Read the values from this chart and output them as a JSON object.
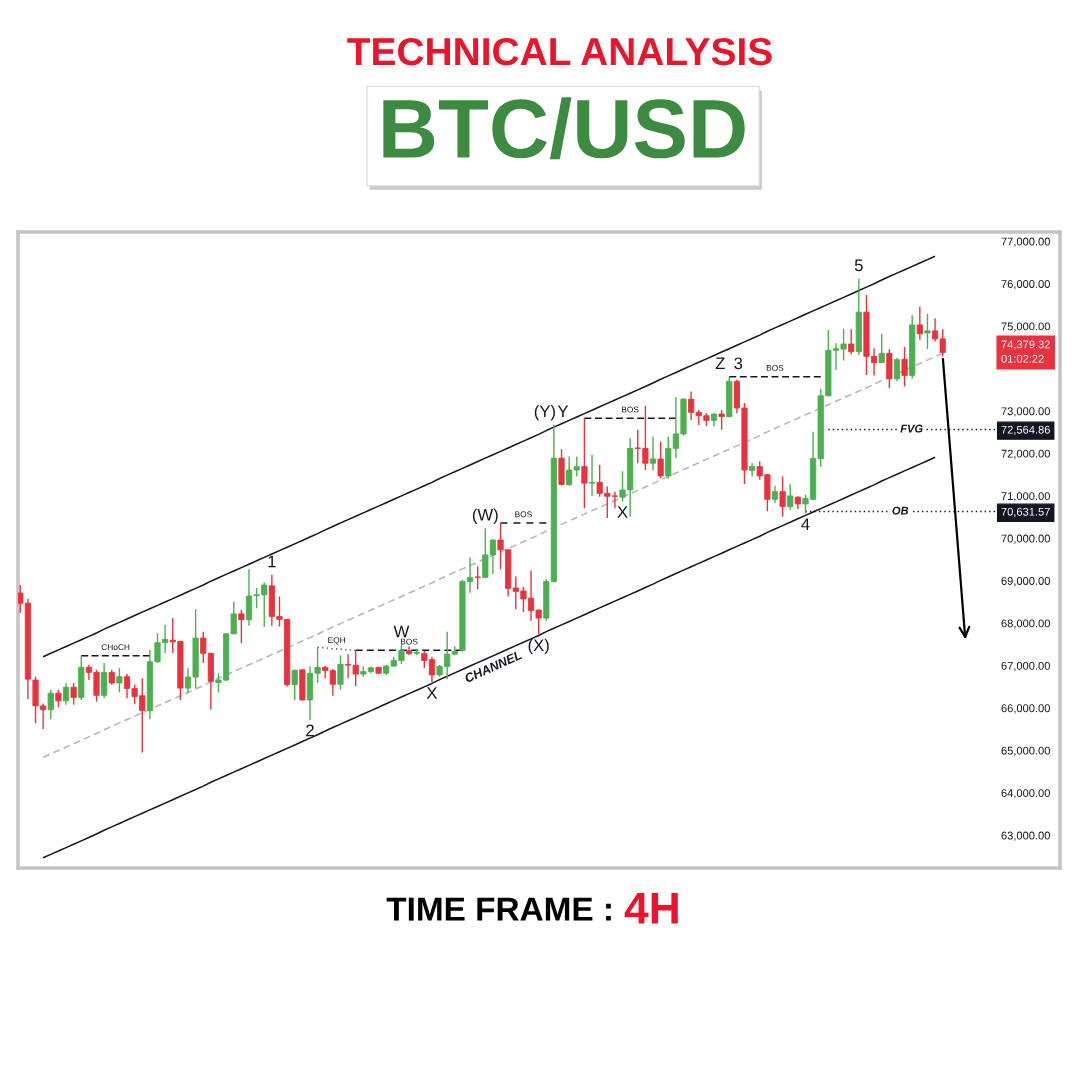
{
  "chart_data": {
    "type": "candlestick",
    "title": "TECHNICAL ANALYSIS",
    "subtitle": "BTC/USD",
    "categories": [
      null,
      null,
      null,
      null,
      null,
      null,
      null,
      null,
      null,
      null,
      null,
      null,
      null,
      null,
      null,
      null,
      null,
      null,
      null,
      null,
      null,
      null,
      null,
      null,
      null,
      null,
      null,
      null,
      null,
      null,
      null,
      null,
      null,
      null,
      null,
      null,
      null,
      null,
      null,
      null,
      null,
      null,
      null,
      null,
      null,
      null,
      null,
      null,
      null,
      null,
      null,
      null,
      null,
      null,
      null,
      null,
      null,
      null,
      null,
      null,
      null,
      null,
      null,
      null,
      null,
      null,
      null,
      null,
      null,
      null,
      null,
      null,
      null,
      null,
      null,
      null,
      null,
      null,
      null,
      null,
      null,
      null,
      null,
      null,
      null,
      null,
      null,
      null,
      null,
      null,
      null,
      null,
      null,
      null,
      null,
      null,
      null,
      null,
      null,
      null,
      null,
      null,
      null,
      null,
      null,
      null,
      null,
      null,
      null,
      null,
      null,
      null,
      null,
      null,
      null,
      null,
      null,
      null,
      null,
      null,
      null,
      null
    ],
    "ohlc": [
      [
        68710,
        68900,
        68240,
        68470
      ],
      [
        68470,
        68570,
        66210,
        66680
      ],
      [
        66660,
        66740,
        65640,
        66050
      ],
      [
        66050,
        66110,
        65500,
        65960
      ],
      [
        65960,
        66430,
        65740,
        66350
      ],
      [
        66350,
        66430,
        66020,
        66170
      ],
      [
        66170,
        66590,
        66080,
        66490
      ],
      [
        66490,
        66590,
        66080,
        66250
      ],
      [
        66250,
        67230,
        66190,
        66960
      ],
      [
        66960,
        67020,
        66660,
        66840
      ],
      [
        66840,
        66900,
        66150,
        66300
      ],
      [
        66300,
        67060,
        66230,
        66840
      ],
      [
        66840,
        66900,
        66550,
        66590
      ],
      [
        66590,
        66940,
        66370,
        66740
      ],
      [
        66740,
        66810,
        66230,
        66460
      ],
      [
        66460,
        66550,
        66090,
        66270
      ],
      [
        66290,
        66700,
        64950,
        65940
      ],
      [
        65940,
        67370,
        65740,
        67090
      ],
      [
        67090,
        67760,
        67070,
        67540
      ],
      [
        67540,
        67960,
        67290,
        67620
      ],
      [
        67600,
        68120,
        67290,
        67560
      ],
      [
        67570,
        67580,
        66190,
        66470
      ],
      [
        66470,
        66940,
        66350,
        66730
      ],
      [
        66730,
        68330,
        66470,
        67650
      ],
      [
        67650,
        67800,
        67060,
        67290
      ],
      [
        67290,
        67300,
        65960,
        66630
      ],
      [
        66600,
        66820,
        66370,
        66660
      ],
      [
        66660,
        67770,
        66640,
        67750
      ],
      [
        67750,
        68510,
        67740,
        68220
      ],
      [
        68220,
        68310,
        67530,
        68080
      ],
      [
        68080,
        69270,
        67940,
        68640
      ],
      [
        68650,
        68830,
        68350,
        68670
      ],
      [
        68670,
        68960,
        67910,
        68900
      ],
      [
        68880,
        69140,
        67940,
        68160
      ],
      [
        68160,
        68630,
        67920,
        68090
      ],
      [
        68090,
        68100,
        66510,
        66550
      ],
      [
        66550,
        66900,
        66190,
        66890
      ],
      [
        66900,
        66910,
        66180,
        66190
      ],
      [
        66190,
        66980,
        65720,
        66820
      ],
      [
        66820,
        67430,
        66590,
        66960
      ],
      [
        66960,
        66990,
        66700,
        66880
      ],
      [
        66880,
        66920,
        66290,
        66560
      ],
      [
        66560,
        67240,
        66430,
        67030
      ],
      [
        67030,
        67270,
        66700,
        67010
      ],
      [
        67010,
        67360,
        66520,
        66800
      ],
      [
        66800,
        66980,
        66740,
        66860
      ],
      [
        66860,
        66980,
        66820,
        66950
      ],
      [
        66960,
        66970,
        66810,
        66820
      ],
      [
        66820,
        67020,
        66780,
        66990
      ],
      [
        66990,
        67210,
        66980,
        67120
      ],
      [
        67120,
        67490,
        67040,
        67360
      ],
      [
        67350,
        67450,
        67250,
        67280
      ],
      [
        67290,
        67400,
        67250,
        67310
      ],
      [
        67280,
        67350,
        66940,
        67120
      ],
      [
        67140,
        67210,
        66600,
        66780
      ],
      [
        66780,
        67020,
        66740,
        66980
      ],
      [
        66980,
        67800,
        66680,
        67270
      ],
      [
        67270,
        67450,
        67250,
        67330
      ],
      [
        67360,
        69020,
        67330,
        68980
      ],
      [
        68980,
        69550,
        68720,
        69080
      ],
      [
        69090,
        69340,
        68800,
        69080
      ],
      [
        69080,
        70240,
        69060,
        69610
      ],
      [
        69610,
        69980,
        69160,
        69960
      ],
      [
        69960,
        70360,
        69270,
        69730
      ],
      [
        69730,
        69740,
        68630,
        68820
      ],
      [
        68830,
        69100,
        68330,
        68750
      ],
      [
        68760,
        68860,
        68260,
        68570
      ],
      [
        68590,
        69240,
        68060,
        68300
      ],
      [
        68310,
        68320,
        67730,
        68120
      ],
      [
        68120,
        69040,
        68060,
        68980
      ],
      [
        68980,
        72680,
        68960,
        71890
      ],
      [
        71890,
        72100,
        71250,
        71270
      ],
      [
        71260,
        71930,
        71250,
        71610
      ],
      [
        71610,
        71930,
        71460,
        71690
      ],
      [
        71690,
        72830,
        70710,
        71300
      ],
      [
        71300,
        71970,
        71000,
        71320
      ],
      [
        71320,
        71730,
        70980,
        71060
      ],
      [
        71060,
        71220,
        70480,
        70990
      ],
      [
        71000,
        71100,
        70710,
        70990
      ],
      [
        70970,
        71580,
        70870,
        71140
      ],
      [
        71140,
        72360,
        70510,
        72120
      ],
      [
        72130,
        72560,
        71770,
        72120
      ],
      [
        72120,
        73120,
        71610,
        71770
      ],
      [
        71770,
        72400,
        71600,
        71870
      ],
      [
        71870,
        72280,
        71420,
        71470
      ],
      [
        71470,
        72400,
        71410,
        72120
      ],
      [
        72120,
        73330,
        71890,
        72460
      ],
      [
        72460,
        73300,
        72420,
        73280
      ],
      [
        73280,
        73460,
        72790,
        72970
      ],
      [
        72970,
        73030,
        72670,
        72890
      ],
      [
        72890,
        72950,
        72650,
        72780
      ],
      [
        72780,
        72950,
        72640,
        72930
      ],
      [
        72930,
        73030,
        72560,
        72870
      ],
      [
        72870,
        73810,
        72850,
        73700
      ],
      [
        73700,
        73740,
        72950,
        73070
      ],
      [
        73070,
        73190,
        71280,
        71610
      ],
      [
        71600,
        71770,
        71460,
        71690
      ],
      [
        71690,
        71810,
        71380,
        71470
      ],
      [
        71500,
        71510,
        70640,
        70920
      ],
      [
        70920,
        71240,
        70830,
        71100
      ],
      [
        71100,
        71460,
        70510,
        70750
      ],
      [
        70750,
        71280,
        70670,
        71000
      ],
      [
        70970,
        70990,
        70690,
        70810
      ],
      [
        70810,
        71030,
        70580,
        70940
      ],
      [
        70920,
        72510,
        70900,
        71880
      ],
      [
        71880,
        73520,
        71690,
        73360
      ],
      [
        73360,
        74910,
        73340,
        74430
      ],
      [
        74430,
        74600,
        73970,
        74470
      ],
      [
        74460,
        74940,
        74190,
        74580
      ],
      [
        74580,
        74930,
        74330,
        74400
      ],
      [
        74400,
        76120,
        74320,
        75330
      ],
      [
        75330,
        75740,
        73850,
        74290
      ],
      [
        74290,
        74480,
        73840,
        74140
      ],
      [
        74140,
        74820,
        74130,
        74360
      ],
      [
        74360,
        74460,
        73540,
        73760
      ],
      [
        73760,
        74250,
        73700,
        74210
      ],
      [
        74220,
        74510,
        73580,
        73840
      ],
      [
        73840,
        75260,
        73770,
        75030
      ],
      [
        75030,
        75460,
        74680,
        74820
      ],
      [
        74840,
        75290,
        74460,
        74890
      ],
      [
        74890,
        75190,
        74640,
        74700
      ],
      [
        74700,
        74930,
        74290,
        74379.32
      ]
    ],
    "colors": [
      "#e8333f",
      "#e8333f",
      "#e8333f",
      "#e8333f",
      "#4caf50",
      "#e8333f",
      "#4caf50",
      "#e8333f",
      "#4caf50",
      "#e8333f",
      "#e8333f",
      "#4caf50",
      "#e8333f",
      "#4caf50",
      "#e8333f",
      "#e8333f",
      "#e8333f",
      "#4caf50",
      "#4caf50",
      "#4caf50",
      "#e8333f",
      "#e8333f",
      "#4caf50",
      "#4caf50",
      "#e8333f",
      "#e8333f",
      "#4caf50",
      "#4caf50",
      "#4caf50",
      "#e8333f",
      "#4caf50",
      "#4caf50",
      "#4caf50",
      "#e8333f",
      "#e8333f",
      "#e8333f",
      "#4caf50",
      "#e8333f",
      "#4caf50",
      "#4caf50",
      "#e8333f",
      "#e8333f",
      "#4caf50",
      "#e8333f",
      "#e8333f",
      "#4caf50",
      "#4caf50",
      "#e8333f",
      "#4caf50",
      "#4caf50",
      "#4caf50",
      "#e8333f",
      "#4caf50",
      "#e8333f",
      "#e8333f",
      "#4caf50",
      "#4caf50",
      "#4caf50",
      "#4caf50",
      "#4caf50",
      "#e8333f",
      "#4caf50",
      "#4caf50",
      "#e8333f",
      "#e8333f",
      "#e8333f",
      "#e8333f",
      "#e8333f",
      "#e8333f",
      "#4caf50",
      "#4caf50",
      "#e8333f",
      "#4caf50",
      "#4caf50",
      "#e8333f",
      "#4caf50",
      "#e8333f",
      "#e8333f",
      "#e8333f",
      "#4caf50",
      "#4caf50",
      "#e8333f",
      "#e8333f",
      "#4caf50",
      "#e8333f",
      "#4caf50",
      "#4caf50",
      "#4caf50",
      "#e8333f",
      "#e8333f",
      "#e8333f",
      "#4caf50",
      "#e8333f",
      "#4caf50",
      "#e8333f",
      "#e8333f",
      "#4caf50",
      "#e8333f",
      "#e8333f",
      "#4caf50",
      "#e8333f",
      "#4caf50",
      "#e8333f",
      "#4caf50",
      "#4caf50",
      "#4caf50",
      "#4caf50",
      "#4caf50",
      "#4caf50",
      "#e8333f",
      "#4caf50",
      "#e8333f",
      "#e8333f",
      "#4caf50",
      "#e8333f",
      "#4caf50",
      "#e8333f",
      "#4caf50",
      "#e8333f",
      "#4caf50",
      "#e8333f",
      "#e8333f"
    ],
    "value_labels": [
      null,
      null,
      null,
      null,
      null,
      null,
      null,
      null,
      null,
      null,
      null,
      null,
      null,
      null,
      null,
      null,
      null,
      null,
      null,
      null,
      null,
      null,
      null,
      null,
      null,
      null,
      null,
      null,
      null,
      null,
      null,
      null,
      null,
      null,
      null,
      null,
      null,
      null,
      null,
      null,
      null,
      null,
      null,
      null,
      null,
      null,
      null,
      null,
      null,
      null,
      null,
      null,
      null,
      null,
      null,
      null,
      null,
      null,
      null,
      null,
      null,
      null,
      null,
      null,
      null,
      null,
      null,
      null,
      null,
      null,
      null,
      null,
      null,
      null,
      null,
      null,
      null,
      null,
      null,
      null,
      null,
      null,
      null,
      null,
      null,
      null,
      null,
      null,
      null,
      null,
      null,
      null,
      null,
      null,
      null,
      null,
      null,
      null,
      null,
      null,
      null,
      null,
      null,
      null,
      null,
      null,
      null,
      null,
      null,
      null,
      null,
      null,
      null,
      null,
      null,
      null,
      null,
      null,
      null,
      null,
      null,
      "74,379.32\n01:02:22"
    ],
    "series": [
      {
        "type": "line",
        "color": "#131722",
        "values": [
          null,
          null,
          null,
          67210,
          67290,
          67370,
          67450,
          67530,
          67610,
          67690,
          67770,
          67860,
          67940,
          68020,
          68100,
          68180,
          68260,
          68340,
          68420,
          68500,
          68580,
          68660,
          68740,
          68820,
          68900,
          68990,
          69070,
          69150,
          69230,
          69310,
          69390,
          69470,
          69550,
          69630,
          69710,
          69790,
          69870,
          69950,
          70030,
          70110,
          70200,
          70280,
          70360,
          70440,
          70520,
          70600,
          70680,
          70760,
          70840,
          70920,
          71000,
          71080,
          71160,
          71240,
          71320,
          71410,
          71490,
          71570,
          71650,
          71730,
          71810,
          71890,
          71970,
          72050,
          72130,
          72210,
          72290,
          72370,
          72450,
          72540,
          72620,
          72700,
          72780,
          72860,
          72940,
          73020,
          73100,
          73180,
          73260,
          73340,
          73420,
          73500,
          73580,
          73660,
          73750,
          73830,
          73910,
          73990,
          74070,
          74150,
          74230,
          74310,
          74390,
          74470,
          74550,
          74630,
          74710,
          74790,
          74880,
          74960,
          75040,
          75120,
          75200,
          75280,
          75360,
          75440,
          75520,
          75600,
          75680,
          75760,
          75840,
          75920,
          76000,
          76090,
          76170,
          76250,
          76330,
          76410,
          76490,
          76570,
          76650,
          null
        ]
      },
      {
        "type": "line",
        "name": "CHANNEL",
        "color": "#131722",
        "values": [
          null,
          null,
          null,
          62470,
          62550,
          62630,
          62710,
          62790,
          62870,
          62950,
          63030,
          63120,
          63200,
          63280,
          63360,
          63440,
          63520,
          63600,
          63680,
          63760,
          63840,
          63920,
          64000,
          64080,
          64160,
          64250,
          64330,
          64410,
          64490,
          64570,
          64650,
          64730,
          64810,
          64890,
          64970,
          65050,
          65130,
          65210,
          65290,
          65370,
          65460,
          65540,
          65620,
          65700,
          65780,
          65860,
          65940,
          66020,
          66100,
          66180,
          66260,
          66340,
          66420,
          66500,
          66580,
          66670,
          66750,
          66830,
          66910,
          66990,
          67070,
          67150,
          67230,
          67310,
          67390,
          67470,
          67550,
          67630,
          67710,
          67800,
          67880,
          67960,
          68040,
          68120,
          68200,
          68280,
          68360,
          68440,
          68520,
          68600,
          68680,
          68760,
          68840,
          68920,
          69010,
          69090,
          69170,
          69250,
          69330,
          69410,
          69490,
          69570,
          69650,
          69730,
          69810,
          69890,
          69970,
          70050,
          70140,
          70220,
          70300,
          70380,
          70460,
          70540,
          70620,
          70700,
          70780,
          70860,
          70940,
          71020,
          71100,
          71180,
          71260,
          71350,
          71430,
          71510,
          71590,
          71670,
          71750,
          71830,
          71910,
          null
        ]
      },
      {
        "type": "line",
        "color": "#b2b5be",
        "line_style": "dashed",
        "values": [
          null,
          null,
          null,
          64840,
          64920,
          65000,
          65080,
          65160,
          65240,
          65320,
          65400,
          65490,
          65570,
          65650,
          65730,
          65810,
          65890,
          65970,
          66050,
          66130,
          66210,
          66290,
          66370,
          66450,
          66530,
          66620,
          66700,
          66780,
          66860,
          66940,
          67020,
          67100,
          67180,
          67260,
          67340,
          67420,
          67500,
          67580,
          67660,
          67740,
          67830,
          67910,
          67990,
          68070,
          68150,
          68230,
          68310,
          68390,
          68470,
          68550,
          68630,
          68710,
          68790,
          68870,
          68950,
          69040,
          69120,
          69200,
          69280,
          69360,
          69440,
          69520,
          69600,
          69680,
          69760,
          69840,
          69920,
          70000,
          70080,
          70170,
          70250,
          70330,
          70410,
          70490,
          70570,
          70650,
          70730,
          70810,
          70890,
          70970,
          71050,
          71130,
          71210,
          71290,
          71380,
          71460,
          71540,
          71620,
          71700,
          71780,
          71860,
          71940,
          72020,
          72100,
          72180,
          72260,
          72340,
          72420,
          72510,
          72590,
          72670,
          72750,
          72830,
          72910,
          72990,
          73070,
          73150,
          73230,
          73310,
          73390,
          73470,
          73550,
          73630,
          73720,
          73800,
          73880,
          73960,
          74040,
          74120,
          74200,
          74280,
          74360
        ]
      },
      {
        "type": "line",
        "name": "CHoCH",
        "color": "#131722",
        "line_style": "dashed",
        "values": [
          null,
          null,
          null,
          null,
          null,
          null,
          null,
          null,
          67230,
          67230,
          67230,
          67230,
          67230,
          67230,
          67230,
          67230,
          67230,
          67230,
          null,
          null,
          null,
          null,
          null,
          null,
          null,
          null,
          null,
          null,
          null,
          null,
          null,
          null,
          null,
          null,
          null,
          null,
          null,
          null,
          null,
          null,
          null,
          null,
          null,
          null,
          null,
          null,
          null,
          null,
          null,
          null,
          null,
          null,
          null,
          null,
          null,
          null,
          null,
          null,
          null,
          null,
          null,
          null,
          null,
          null,
          null,
          null,
          null,
          null,
          null,
          null,
          null,
          null,
          null,
          null,
          null,
          null,
          null,
          null,
          null,
          null,
          null,
          null,
          null,
          null,
          null,
          null,
          null,
          null,
          null,
          null,
          null,
          null,
          null,
          null,
          null,
          null,
          null,
          null,
          null,
          null,
          null,
          null,
          null,
          null,
          null,
          null,
          null,
          null,
          null,
          null,
          null,
          null,
          null,
          null,
          null,
          null,
          null,
          null,
          null,
          null,
          null,
          null
        ]
      },
      {
        "type": "line",
        "name": "EQH",
        "color": "#5d606b",
        "line_style": "dotted",
        "values": [
          null,
          null,
          null,
          null,
          null,
          null,
          null,
          null,
          null,
          null,
          null,
          null,
          null,
          null,
          null,
          null,
          null,
          null,
          null,
          null,
          null,
          null,
          null,
          null,
          null,
          null,
          null,
          null,
          null,
          null,
          null,
          null,
          null,
          null,
          null,
          null,
          null,
          null,
          null,
          67430,
          67420,
          67400,
          67390,
          67370,
          67360,
          null,
          null,
          null,
          null,
          null,
          null,
          null,
          null,
          null,
          null,
          null,
          null,
          null,
          null,
          null,
          null,
          null,
          null,
          null,
          null,
          null,
          null,
          null,
          null,
          null,
          null,
          null,
          null,
          null,
          null,
          null,
          null,
          null,
          null,
          null,
          null,
          null,
          null,
          null,
          null,
          null,
          null,
          null,
          null,
          null,
          null,
          null,
          null,
          null,
          null,
          null,
          null,
          null,
          null,
          null,
          null,
          null,
          null,
          null,
          null,
          null,
          null,
          null,
          null,
          null,
          null,
          null,
          null,
          null,
          null,
          null,
          null,
          null,
          null,
          null,
          null,
          null
        ]
      },
      {
        "type": "line",
        "name": "BOS",
        "color": "#131722",
        "line_style": "dashed",
        "values": [
          null,
          null,
          null,
          null,
          null,
          null,
          null,
          null,
          null,
          null,
          null,
          null,
          null,
          null,
          null,
          null,
          null,
          null,
          null,
          null,
          null,
          null,
          null,
          null,
          null,
          null,
          null,
          null,
          null,
          null,
          null,
          null,
          null,
          null,
          null,
          null,
          null,
          null,
          null,
          null,
          null,
          null,
          null,
          null,
          67360,
          67360,
          67360,
          67360,
          67360,
          67360,
          67360,
          67360,
          67360,
          67360,
          67360,
          67360,
          67360,
          67360,
          67360,
          null,
          null,
          null,
          null,
          null,
          null,
          null,
          null,
          null,
          null,
          null,
          null,
          null,
          null,
          null,
          null,
          null,
          null,
          null,
          null,
          null,
          null,
          null,
          null,
          null,
          null,
          null,
          null,
          null,
          null,
          null,
          null,
          null,
          null,
          null,
          null,
          null,
          null,
          null,
          null,
          null,
          null,
          null,
          null,
          null,
          null,
          null,
          null,
          null,
          null,
          null,
          null,
          null,
          null,
          null,
          null,
          null,
          null,
          null,
          null,
          null,
          null,
          null
        ]
      },
      {
        "type": "line",
        "name": "BOS",
        "color": "#131722",
        "line_style": "dashed",
        "values": [
          null,
          null,
          null,
          null,
          null,
          null,
          null,
          null,
          null,
          null,
          null,
          null,
          null,
          null,
          null,
          null,
          null,
          null,
          null,
          null,
          null,
          null,
          null,
          null,
          null,
          null,
          null,
          null,
          null,
          null,
          null,
          null,
          null,
          null,
          null,
          null,
          null,
          null,
          null,
          null,
          null,
          null,
          null,
          null,
          null,
          null,
          null,
          null,
          null,
          null,
          null,
          null,
          null,
          null,
          null,
          null,
          null,
          null,
          null,
          null,
          null,
          null,
          null,
          70360,
          70360,
          70360,
          70360,
          70360,
          70360,
          70360,
          null,
          null,
          null,
          null,
          null,
          null,
          null,
          null,
          null,
          null,
          null,
          null,
          null,
          null,
          null,
          null,
          null,
          null,
          null,
          null,
          null,
          null,
          null,
          null,
          null,
          null,
          null,
          null,
          null,
          null,
          null,
          null,
          null,
          null,
          null,
          null,
          null,
          null,
          null,
          null,
          null,
          null,
          null,
          null,
          null,
          null,
          null,
          null,
          null,
          null,
          null,
          null
        ]
      },
      {
        "type": "line",
        "name": "BOS",
        "color": "#131722",
        "line_style": "dashed",
        "values": [
          null,
          null,
          null,
          null,
          null,
          null,
          null,
          null,
          null,
          null,
          null,
          null,
          null,
          null,
          null,
          null,
          null,
          null,
          null,
          null,
          null,
          null,
          null,
          null,
          null,
          null,
          null,
          null,
          null,
          null,
          null,
          null,
          null,
          null,
          null,
          null,
          null,
          null,
          null,
          null,
          null,
          null,
          null,
          null,
          null,
          null,
          null,
          null,
          null,
          null,
          null,
          null,
          null,
          null,
          null,
          null,
          null,
          null,
          null,
          null,
          null,
          null,
          null,
          null,
          null,
          null,
          null,
          null,
          null,
          null,
          null,
          null,
          null,
          null,
          72830,
          72830,
          72830,
          72830,
          72830,
          72830,
          72830,
          72830,
          72830,
          72830,
          72830,
          72830,
          72830,
          null,
          null,
          null,
          null,
          null,
          null,
          null,
          null,
          null,
          null,
          null,
          null,
          null,
          null,
          null,
          null,
          null,
          null,
          null,
          null,
          null,
          null,
          null,
          null,
          null,
          null,
          null,
          null,
          null,
          null,
          null,
          null,
          null,
          null,
          null
        ]
      },
      {
        "type": "line",
        "name": "BOS",
        "color": "#131722",
        "line_style": "dashed",
        "values": [
          null,
          null,
          null,
          null,
          null,
          null,
          null,
          null,
          null,
          null,
          null,
          null,
          null,
          null,
          null,
          null,
          null,
          null,
          null,
          null,
          null,
          null,
          null,
          null,
          null,
          null,
          null,
          null,
          null,
          null,
          null,
          null,
          null,
          null,
          null,
          null,
          null,
          null,
          null,
          null,
          null,
          null,
          null,
          null,
          null,
          null,
          null,
          null,
          null,
          null,
          null,
          null,
          null,
          null,
          null,
          null,
          null,
          null,
          null,
          null,
          null,
          null,
          null,
          null,
          null,
          null,
          null,
          null,
          null,
          null,
          null,
          null,
          null,
          null,
          null,
          null,
          null,
          null,
          null,
          null,
          null,
          null,
          null,
          null,
          null,
          null,
          null,
          null,
          null,
          null,
          null,
          null,
          null,
          73810,
          73810,
          73810,
          73810,
          73810,
          73810,
          73810,
          73810,
          73810,
          73810,
          73810,
          73810,
          73810,
          null,
          null,
          null,
          null,
          null,
          null,
          null,
          null,
          null,
          null,
          null,
          null,
          null,
          null,
          null,
          null
        ]
      },
      {
        "type": "line",
        "name": "FVG",
        "color": "#131722",
        "line_style": "dotted",
        "values": [
          null,
          null,
          null,
          null,
          null,
          null,
          null,
          null,
          null,
          null,
          null,
          null,
          null,
          null,
          null,
          null,
          null,
          null,
          null,
          null,
          null,
          null,
          null,
          null,
          null,
          null,
          null,
          null,
          null,
          null,
          null,
          null,
          null,
          null,
          null,
          null,
          null,
          null,
          null,
          null,
          null,
          null,
          null,
          null,
          null,
          null,
          null,
          null,
          null,
          null,
          null,
          null,
          null,
          null,
          null,
          null,
          null,
          null,
          null,
          null,
          null,
          null,
          null,
          null,
          null,
          null,
          null,
          null,
          null,
          null,
          null,
          null,
          null,
          null,
          null,
          null,
          null,
          null,
          null,
          null,
          null,
          null,
          null,
          null,
          null,
          null,
          null,
          null,
          null,
          null,
          null,
          null,
          null,
          null,
          null,
          null,
          null,
          null,
          null,
          null,
          null,
          null,
          null,
          null,
          null,
          null,
          72564.86,
          72564.86,
          72564.86,
          72564.86,
          72564.86,
          72564.86,
          72564.86,
          72564.86,
          72564.86,
          72564.86,
          72564.86,
          72564.86,
          72564.86,
          72564.86,
          72564.86,
          72564.86
        ]
      },
      {
        "type": "line",
        "name": "OB",
        "color": "#131722",
        "line_style": "dotted",
        "values": [
          null,
          null,
          null,
          null,
          null,
          null,
          null,
          null,
          null,
          null,
          null,
          null,
          null,
          null,
          null,
          null,
          null,
          null,
          null,
          null,
          null,
          null,
          null,
          null,
          null,
          null,
          null,
          null,
          null,
          null,
          null,
          null,
          null,
          null,
          null,
          null,
          null,
          null,
          null,
          null,
          null,
          null,
          null,
          null,
          null,
          null,
          null,
          null,
          null,
          null,
          null,
          null,
          null,
          null,
          null,
          null,
          null,
          null,
          null,
          null,
          null,
          null,
          null,
          null,
          null,
          null,
          null,
          null,
          null,
          null,
          null,
          null,
          null,
          null,
          null,
          null,
          null,
          null,
          null,
          null,
          null,
          null,
          null,
          null,
          null,
          null,
          null,
          null,
          null,
          null,
          null,
          null,
          null,
          null,
          null,
          null,
          null,
          null,
          null,
          null,
          null,
          null,
          null,
          70631.57,
          70631.57,
          70631.57,
          70631.57,
          70631.57,
          70631.57,
          70631.57,
          70631.57,
          70631.57,
          70631.57,
          70631.57,
          70631.57,
          70631.57,
          70631.57,
          70631.57,
          70631.57,
          70631.57,
          70631.57,
          70631.57
        ]
      }
    ],
    "ylim": [
      62230,
      77220
    ],
    "yticks": [
      {
        "value": 63000,
        "label": "63,000.00"
      },
      {
        "value": 64000,
        "label": "64,000.00"
      },
      {
        "value": 65000,
        "label": "65,000.00"
      },
      {
        "value": 66000,
        "label": "66,000.00"
      },
      {
        "value": 67000,
        "label": "67,000.00"
      },
      {
        "value": 68000,
        "label": "68,000.00"
      },
      {
        "value": 69000,
        "label": "69,000.00"
      },
      {
        "value": 70000,
        "label": "70,000.00"
      },
      {
        "value": 70631.57,
        "label": "70,631.57"
      },
      {
        "value": 71000,
        "label": "71,000.00"
      },
      {
        "value": 72000,
        "label": "72,000.00"
      },
      {
        "value": 72564.86,
        "label": "72,564.86"
      },
      {
        "value": 73000,
        "label": "73,000.00"
      },
      {
        "value": 75000,
        "label": "75,000.00"
      },
      {
        "value": 76000,
        "label": "76,000.00"
      },
      {
        "value": 77000,
        "label": "77,000.00"
      }
    ],
    "tick_labels": "y",
    "annotations": [
      "1",
      "2",
      "W",
      "X",
      "(W)",
      "(X)",
      "(Y)",
      "Y",
      "X",
      "Z",
      "3",
      "4",
      "5",
      "TIME FRAME : 4H"
    ]
  }
}
